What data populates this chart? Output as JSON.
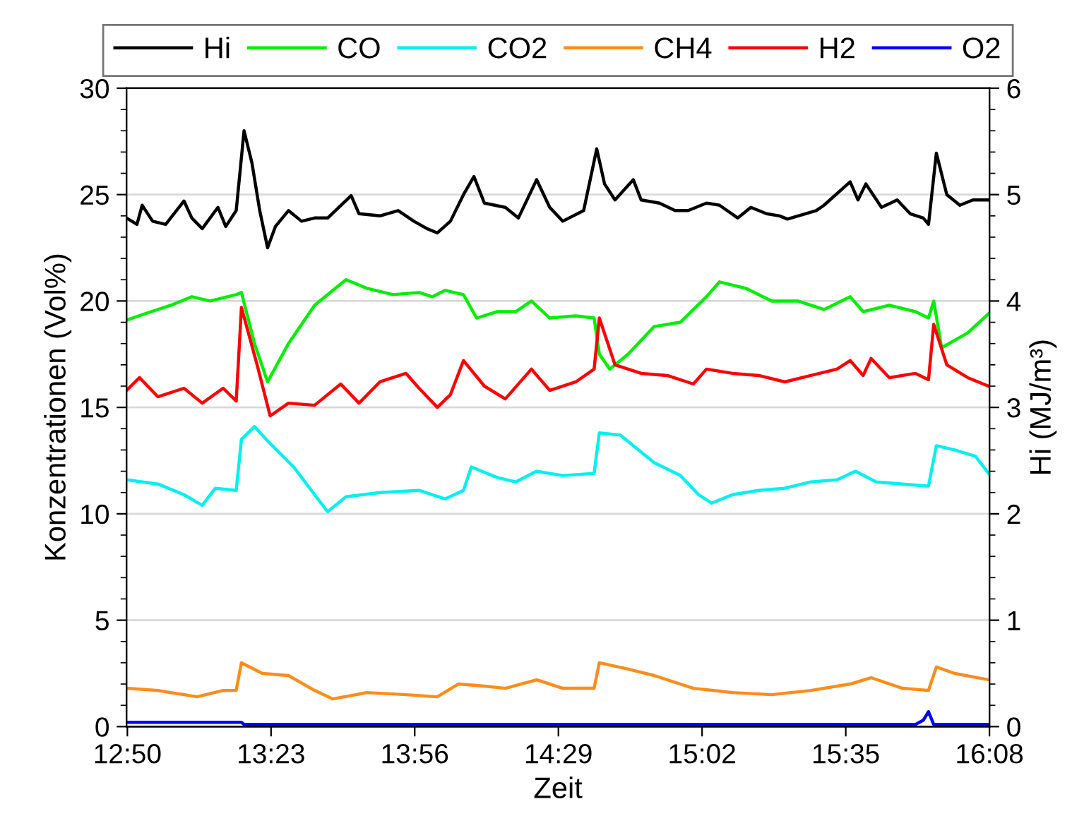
{
  "chart_data": {
    "type": "line",
    "xlabel": "Zeit",
    "ylabel": "Konzentrationen (Vol%)",
    "y2label": "Hi (MJ/m³)",
    "xlim": [
      12.83,
      16.1333
    ],
    "xticks": [
      {
        "value": 12.8333,
        "label": "12:50"
      },
      {
        "value": 13.3833,
        "label": "13:23"
      },
      {
        "value": 13.9333,
        "label": "13:56"
      },
      {
        "value": 14.4833,
        "label": "14:29"
      },
      {
        "value": 15.0333,
        "label": "15:02"
      },
      {
        "value": 15.5833,
        "label": "15:35"
      },
      {
        "value": 16.1333,
        "label": "16:08"
      }
    ],
    "ylim": [
      0,
      30
    ],
    "yticks": [
      0,
      5,
      10,
      15,
      20,
      25,
      30
    ],
    "y2lim": [
      0,
      6
    ],
    "y2ticks": [
      0,
      1,
      2,
      3,
      4,
      5,
      6
    ],
    "grid": "y",
    "legend": "top",
    "line_style": "solid",
    "marker": "none",
    "series": [
      {
        "name": "Hi",
        "color": "#000000",
        "axis": "y2",
        "x": [
          12.83,
          12.87,
          12.89,
          12.93,
          12.98,
          13.05,
          13.08,
          13.12,
          13.18,
          13.21,
          13.25,
          13.28,
          13.31,
          13.34,
          13.37,
          13.4,
          13.45,
          13.5,
          13.55,
          13.6,
          13.69,
          13.72,
          13.8,
          13.87,
          13.93,
          13.98,
          14.02,
          14.07,
          14.12,
          14.16,
          14.2,
          14.28,
          14.33,
          14.4,
          14.45,
          14.5,
          14.58,
          14.63,
          14.66,
          14.7,
          14.77,
          14.8,
          14.87,
          14.93,
          14.98,
          15.05,
          15.1,
          15.17,
          15.22,
          15.28,
          15.33,
          15.36,
          15.47,
          15.5,
          15.6,
          15.63,
          15.66,
          15.72,
          15.78,
          15.83,
          15.88,
          15.9,
          15.93,
          15.97,
          16.02,
          16.07,
          16.13
        ],
        "values": [
          4.78,
          4.72,
          4.9,
          4.75,
          4.72,
          4.94,
          4.78,
          4.68,
          4.88,
          4.7,
          4.85,
          5.6,
          5.3,
          4.85,
          4.5,
          4.7,
          4.85,
          4.75,
          4.78,
          4.78,
          4.99,
          4.82,
          4.8,
          4.85,
          4.75,
          4.68,
          4.64,
          4.75,
          5.0,
          5.17,
          4.92,
          4.88,
          4.78,
          5.14,
          4.88,
          4.75,
          4.85,
          5.43,
          5.1,
          4.95,
          5.14,
          4.95,
          4.92,
          4.85,
          4.85,
          4.92,
          4.9,
          4.78,
          4.88,
          4.82,
          4.8,
          4.77,
          4.85,
          4.9,
          5.12,
          4.95,
          5.1,
          4.88,
          4.95,
          4.82,
          4.78,
          4.72,
          5.39,
          5.0,
          4.9,
          4.95,
          4.95
        ]
      },
      {
        "name": "CO",
        "color": "#00ee00",
        "x": [
          12.83,
          12.9,
          13.0,
          13.08,
          13.15,
          13.25,
          13.27,
          13.32,
          13.37,
          13.45,
          13.55,
          13.67,
          13.75,
          13.85,
          13.95,
          14.0,
          14.05,
          14.12,
          14.17,
          14.25,
          14.32,
          14.38,
          14.45,
          14.55,
          14.62,
          14.64,
          14.68,
          14.75,
          14.85,
          14.95,
          15.05,
          15.1,
          15.2,
          15.3,
          15.4,
          15.5,
          15.6,
          15.65,
          15.75,
          15.85,
          15.9,
          15.92,
          15.95,
          16.05,
          16.13
        ],
        "values": [
          19.1,
          19.4,
          19.8,
          20.2,
          20.0,
          20.3,
          20.4,
          18.0,
          16.2,
          18.0,
          19.8,
          21.0,
          20.6,
          20.3,
          20.4,
          20.2,
          20.5,
          20.3,
          19.2,
          19.5,
          19.5,
          20.0,
          19.2,
          19.3,
          19.2,
          17.5,
          16.8,
          17.5,
          18.8,
          19.0,
          20.2,
          20.9,
          20.6,
          20.0,
          20.0,
          19.6,
          20.2,
          19.5,
          19.8,
          19.5,
          19.2,
          20.0,
          17.8,
          18.5,
          19.4
        ]
      },
      {
        "name": "CO2",
        "color": "#00f0f0",
        "x": [
          12.83,
          12.95,
          13.05,
          13.12,
          13.17,
          13.25,
          13.27,
          13.32,
          13.38,
          13.47,
          13.55,
          13.6,
          13.67,
          13.8,
          13.95,
          14.05,
          14.12,
          14.15,
          14.25,
          14.32,
          14.4,
          14.5,
          14.62,
          14.64,
          14.72,
          14.85,
          14.95,
          15.02,
          15.07,
          15.15,
          15.25,
          15.35,
          15.45,
          15.55,
          15.62,
          15.7,
          15.8,
          15.9,
          15.93,
          16.0,
          16.08,
          16.13
        ],
        "values": [
          11.6,
          11.4,
          10.9,
          10.4,
          11.2,
          11.1,
          13.5,
          14.1,
          13.3,
          12.2,
          10.9,
          10.1,
          10.8,
          11.0,
          11.1,
          10.7,
          11.1,
          12.2,
          11.7,
          11.5,
          12.0,
          11.8,
          11.9,
          13.8,
          13.7,
          12.4,
          11.8,
          10.9,
          10.5,
          10.9,
          11.1,
          11.2,
          11.5,
          11.6,
          12.0,
          11.5,
          11.4,
          11.3,
          13.2,
          13.0,
          12.7,
          11.9
        ]
      },
      {
        "name": "CH4",
        "color": "#ff8c1a",
        "x": [
          12.83,
          12.95,
          13.1,
          13.2,
          13.25,
          13.27,
          13.35,
          13.45,
          13.55,
          13.62,
          13.75,
          13.9,
          14.02,
          14.1,
          14.2,
          14.28,
          14.4,
          14.5,
          14.62,
          14.64,
          14.75,
          14.85,
          15.0,
          15.15,
          15.3,
          15.45,
          15.6,
          15.68,
          15.8,
          15.9,
          15.93,
          16.0,
          16.13
        ],
        "values": [
          1.8,
          1.7,
          1.4,
          1.7,
          1.7,
          3.0,
          2.5,
          2.4,
          1.7,
          1.3,
          1.6,
          1.5,
          1.4,
          2.0,
          1.9,
          1.8,
          2.2,
          1.8,
          1.8,
          3.0,
          2.7,
          2.4,
          1.8,
          1.6,
          1.5,
          1.7,
          2.0,
          2.3,
          1.8,
          1.7,
          2.8,
          2.5,
          2.2
        ]
      },
      {
        "name": "H2",
        "color": "#ff0000",
        "x": [
          12.83,
          12.88,
          12.95,
          13.05,
          13.12,
          13.2,
          13.25,
          13.27,
          13.33,
          13.38,
          13.45,
          13.55,
          13.65,
          13.72,
          13.8,
          13.9,
          13.95,
          14.02,
          14.07,
          14.12,
          14.2,
          14.28,
          14.38,
          14.45,
          14.55,
          14.62,
          14.64,
          14.7,
          14.8,
          14.9,
          15.0,
          15.05,
          15.15,
          15.25,
          15.35,
          15.45,
          15.55,
          15.6,
          15.65,
          15.68,
          15.75,
          15.85,
          15.9,
          15.92,
          15.97,
          16.05,
          16.13
        ],
        "values": [
          15.8,
          16.4,
          15.5,
          15.9,
          15.2,
          15.9,
          15.3,
          19.7,
          17.0,
          14.6,
          15.2,
          15.1,
          16.1,
          15.2,
          16.2,
          16.6,
          15.9,
          15.0,
          15.6,
          17.2,
          16.0,
          15.4,
          16.8,
          15.8,
          16.2,
          16.8,
          19.2,
          17.0,
          16.6,
          16.5,
          16.1,
          16.8,
          16.6,
          16.5,
          16.2,
          16.5,
          16.8,
          17.2,
          16.5,
          17.3,
          16.4,
          16.6,
          16.3,
          18.9,
          17.0,
          16.4,
          16.0
        ]
      },
      {
        "name": "O2",
        "color": "#0000ff",
        "x": [
          12.83,
          13.27,
          13.28,
          15.85,
          15.88,
          15.9,
          15.92,
          16.13
        ],
        "values": [
          0.2,
          0.2,
          0.1,
          0.1,
          0.3,
          0.7,
          0.1,
          0.1
        ]
      }
    ]
  }
}
